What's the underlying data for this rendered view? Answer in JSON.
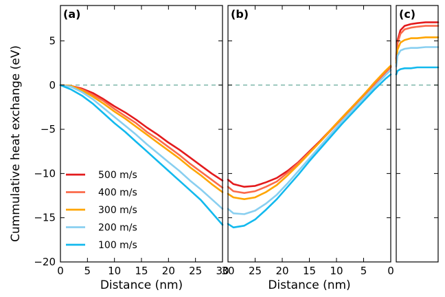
{
  "chart_data": {
    "type": "line",
    "ylabel": "Cummulative heat exchange (eV)",
    "ylim": [
      -20,
      9
    ],
    "yticks": [
      5,
      0,
      -5,
      -10,
      -15,
      -20
    ],
    "ytick_labels": [
      "5",
      "0",
      "−5",
      "−10",
      "−15",
      "−20"
    ],
    "zero_line": true,
    "panels": [
      {
        "label": "(a)",
        "xlabel": "Distance (nm)",
        "xlim": [
          0,
          30
        ],
        "xticks": [
          0,
          5,
          10,
          15,
          20,
          25,
          30
        ],
        "xtick_labels": [
          "0",
          "5",
          "10",
          "15",
          "20",
          "25",
          "30"
        ],
        "series": [
          {
            "name": "500 m/s",
            "color": "#e31a1c",
            "x": [
              0,
              2,
              4,
              6,
              8,
              10,
              12,
              14,
              16,
              18,
              20,
              22,
              24,
              26,
              28,
              30
            ],
            "y": [
              0,
              -0.1,
              -0.4,
              -0.9,
              -1.6,
              -2.4,
              -3.1,
              -3.9,
              -4.8,
              -5.6,
              -6.5,
              -7.3,
              -8.2,
              -9.1,
              -10.0,
              -10.8
            ]
          },
          {
            "name": "400 m/s",
            "color": "#fb6a4a",
            "x": [
              0,
              2,
              4,
              6,
              8,
              10,
              12,
              14,
              16,
              18,
              20,
              22,
              24,
              26,
              28,
              30
            ],
            "y": [
              0,
              -0.1,
              -0.5,
              -1.1,
              -1.8,
              -2.7,
              -3.5,
              -4.3,
              -5.3,
              -6.1,
              -7.0,
              -7.9,
              -8.9,
              -9.8,
              -10.7,
              -11.6
            ]
          },
          {
            "name": "300 m/s",
            "color": "#ffa500",
            "x": [
              0,
              2,
              4,
              6,
              8,
              10,
              12,
              14,
              16,
              18,
              20,
              22,
              24,
              26,
              28,
              30
            ],
            "y": [
              0,
              -0.1,
              -0.6,
              -1.3,
              -2.1,
              -3.0,
              -3.8,
              -4.7,
              -5.6,
              -6.5,
              -7.4,
              -8.3,
              -9.3,
              -10.2,
              -11.2,
              -12.1
            ]
          },
          {
            "name": "200 m/s",
            "color": "#89cff0",
            "x": [
              0,
              2,
              4,
              6,
              8,
              10,
              12,
              14,
              16,
              18,
              20,
              22,
              24,
              26,
              28,
              30
            ],
            "y": [
              0,
              -0.2,
              -0.8,
              -1.6,
              -2.6,
              -3.6,
              -4.6,
              -5.6,
              -6.7,
              -7.7,
              -8.7,
              -9.7,
              -10.8,
              -11.8,
              -12.9,
              -14.0
            ]
          },
          {
            "name": "100 m/s",
            "color": "#12b9ee",
            "x": [
              0,
              2,
              4,
              6,
              8,
              10,
              12,
              14,
              16,
              18,
              20,
              22,
              24,
              26,
              28,
              30
            ],
            "y": [
              0,
              -0.5,
              -1.2,
              -2.1,
              -3.2,
              -4.3,
              -5.3,
              -6.4,
              -7.5,
              -8.6,
              -9.7,
              -10.8,
              -11.9,
              -13.0,
              -14.4,
              -15.8
            ]
          }
        ]
      },
      {
        "label": "(b)",
        "xlabel": "Distance (nm)",
        "xlim": [
          30,
          0
        ],
        "xticks": [
          30,
          25,
          20,
          15,
          10,
          5,
          0
        ],
        "xtick_labels": [
          "30",
          "25",
          "20",
          "15",
          "10",
          "5",
          "0"
        ],
        "series": [
          {
            "name": "500 m/s",
            "color": "#e31a1c",
            "x": [
              30,
              29,
              27,
              25,
              23,
              21,
              19,
              17,
              15,
              13,
              11,
              9,
              7,
              5,
              3,
              1,
              0
            ],
            "y": [
              -10.7,
              -11.2,
              -11.5,
              -11.4,
              -11.0,
              -10.5,
              -9.7,
              -8.7,
              -7.5,
              -6.3,
              -5.0,
              -3.7,
              -2.4,
              -1.1,
              0.2,
              1.5,
              2.1
            ]
          },
          {
            "name": "400 m/s",
            "color": "#fb6a4a",
            "x": [
              30,
              29,
              27,
              25,
              23,
              21,
              19,
              17,
              15,
              13,
              11,
              9,
              7,
              5,
              3,
              1,
              0
            ],
            "y": [
              -11.5,
              -12.0,
              -12.2,
              -12.0,
              -11.5,
              -10.9,
              -9.9,
              -8.8,
              -7.6,
              -6.4,
              -5.1,
              -3.8,
              -2.5,
              -1.2,
              0.1,
              1.4,
              2.0
            ]
          },
          {
            "name": "300 m/s",
            "color": "#ffa500",
            "x": [
              30,
              29,
              27,
              25,
              23,
              21,
              19,
              17,
              15,
              13,
              11,
              9,
              7,
              5,
              3,
              1,
              0
            ],
            "y": [
              -12.3,
              -12.7,
              -12.9,
              -12.7,
              -12.1,
              -11.3,
              -10.2,
              -9.0,
              -7.7,
              -6.4,
              -5.0,
              -3.7,
              -2.4,
              -1.1,
              0.3,
              1.6,
              2.2
            ]
          },
          {
            "name": "200 m/s",
            "color": "#89cff0",
            "x": [
              30,
              29,
              27,
              25,
              23,
              21,
              19,
              17,
              15,
              13,
              11,
              9,
              7,
              5,
              3,
              1,
              0
            ],
            "y": [
              -14.0,
              -14.5,
              -14.6,
              -14.2,
              -13.4,
              -12.4,
              -11.1,
              -9.7,
              -8.3,
              -6.9,
              -5.5,
              -4.1,
              -2.8,
              -1.5,
              -0.2,
              1.1,
              1.7
            ]
          },
          {
            "name": "100 m/s",
            "color": "#12b9ee",
            "x": [
              30,
              29,
              27,
              25,
              23,
              21,
              19,
              17,
              15,
              13,
              11,
              9,
              7,
              5,
              3,
              1,
              0
            ],
            "y": [
              -15.7,
              -16.1,
              -15.9,
              -15.2,
              -14.1,
              -12.9,
              -11.5,
              -10.1,
              -8.6,
              -7.2,
              -5.8,
              -4.4,
              -3.1,
              -1.8,
              -0.5,
              0.7,
              1.2
            ]
          }
        ]
      },
      {
        "label": "(c)",
        "series": [
          {
            "name": "500 m/s",
            "color": "#e31a1c",
            "x": [
              0,
              0.3,
              1,
              2,
              3.5,
              5,
              7,
              10
            ],
            "y": [
              3.0,
              5.0,
              6.2,
              6.7,
              6.9,
              7.0,
              7.1,
              7.1
            ]
          },
          {
            "name": "400 m/s",
            "color": "#fb6a4a",
            "x": [
              0,
              0.3,
              1,
              2,
              3.5,
              5,
              7,
              10
            ],
            "y": [
              2.8,
              4.7,
              5.8,
              6.3,
              6.5,
              6.6,
              6.7,
              6.7
            ]
          },
          {
            "name": "300 m/s",
            "color": "#ffa500",
            "x": [
              0,
              0.3,
              1,
              2,
              3.5,
              5,
              7,
              10
            ],
            "y": [
              2.5,
              4.0,
              4.8,
              5.1,
              5.3,
              5.3,
              5.4,
              5.4
            ]
          },
          {
            "name": "200 m/s",
            "color": "#89cff0",
            "x": [
              0,
              0.3,
              1,
              2,
              3.5,
              5,
              7,
              10
            ],
            "y": [
              2.1,
              3.3,
              3.9,
              4.1,
              4.2,
              4.2,
              4.3,
              4.3
            ]
          },
          {
            "name": "100 m/s",
            "color": "#12b9ee",
            "x": [
              0,
              0.3,
              1,
              2,
              3.5,
              5,
              7,
              10
            ],
            "y": [
              1.2,
              1.6,
              1.8,
              1.9,
              1.9,
              2.0,
              2.0,
              2.0
            ]
          }
        ]
      }
    ],
    "legend": {
      "placement": "lower-left of panel (a)",
      "entries": [
        {
          "label": "500 m/s",
          "color": "#e31a1c"
        },
        {
          "label": "400 m/s",
          "color": "#fb6a4a"
        },
        {
          "label": "300 m/s",
          "color": "#ffa500"
        },
        {
          "label": "200 m/s",
          "color": "#89cff0"
        },
        {
          "label": "100 m/s",
          "color": "#12b9ee"
        }
      ]
    },
    "zero_line_color": "#66aa99"
  }
}
